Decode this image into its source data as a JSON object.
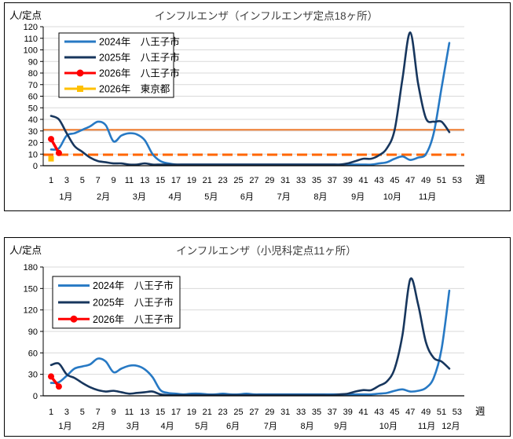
{
  "chart_data": [
    {
      "type": "line",
      "title": "インフルエンザ（インフルエンザ定点18ヶ所）",
      "ylabel": "人/定点",
      "xlabel": "週",
      "ylim": [
        0,
        120
      ],
      "ytick_step": 10,
      "week_ticks": {
        "start": 1,
        "end": 53,
        "step": 2
      },
      "grid": true,
      "legend_position": "top-left",
      "months": [
        {
          "label": "1月",
          "week": 2.9
        },
        {
          "label": "2月",
          "week": 7.7
        },
        {
          "label": "3月",
          "week": 12.3
        },
        {
          "label": "4月",
          "week": 16.9
        },
        {
          "label": "5月",
          "week": 21.5
        },
        {
          "label": "6月",
          "week": 26.1
        },
        {
          "label": "7月",
          "week": 30.8
        },
        {
          "label": "8月",
          "week": 35.5
        },
        {
          "label": "9月",
          "week": 40.3
        },
        {
          "label": "10月",
          "week": 44.7
        },
        {
          "label": "11月",
          "week": 49.2
        }
      ],
      "reference_lines": [
        {
          "name": "alert-level-line",
          "value": 31,
          "color": "#ED7D31",
          "style": "solid"
        },
        {
          "name": "caution-level-line",
          "value": 9.5,
          "color": "#FF6600",
          "style": "dashed"
        }
      ],
      "series": [
        {
          "name": "2024年　八王子市",
          "color": "#2779C4",
          "marker": "none",
          "start_week": 1,
          "values": [
            14,
            15,
            26,
            28,
            31,
            34,
            38,
            35,
            21,
            26,
            28,
            27,
            22,
            10,
            4,
            2,
            1,
            1,
            1,
            1,
            1,
            1,
            1,
            1,
            1,
            1,
            1,
            1,
            1,
            1,
            1,
            1,
            1,
            1,
            1,
            1,
            1,
            1,
            1,
            1,
            1,
            1,
            2,
            3,
            6,
            8,
            5,
            7,
            10,
            28,
            67,
            106
          ]
        },
        {
          "name": "2025年　八王子市",
          "color": "#17365D",
          "marker": "none",
          "start_week": 1,
          "values": [
            43,
            40,
            28,
            17,
            12,
            7,
            4,
            3,
            2,
            2,
            1,
            1,
            2,
            1,
            1,
            1,
            1,
            1,
            1,
            1,
            1,
            1,
            1,
            1,
            1,
            1,
            1,
            1,
            1,
            1,
            1,
            1,
            1,
            1,
            1,
            1,
            1,
            1,
            2,
            4,
            6,
            6,
            9,
            15,
            31,
            75,
            115,
            71,
            41,
            38,
            38,
            29
          ]
        },
        {
          "name": "2026年　八王子市",
          "color": "#FF0000",
          "marker": "circle",
          "start_week": 1,
          "values": [
            23,
            11
          ]
        },
        {
          "name": "2026年　東京都",
          "color": "#FFC000",
          "marker": "square",
          "start_week": 1,
          "values": [
            6
          ]
        }
      ]
    },
    {
      "type": "line",
      "title": "インフルエンザ（小児科定点11ヶ所）",
      "ylabel": "人/定点",
      "xlabel": "週",
      "ylim": [
        0,
        180
      ],
      "ytick_step": 30,
      "week_ticks": {
        "start": 1,
        "end": 53,
        "step": 2
      },
      "grid": true,
      "legend_position": "top-left",
      "months": [
        {
          "label": "1月",
          "week": 2.8
        },
        {
          "label": "2月",
          "week": 7.1
        },
        {
          "label": "3月",
          "week": 11.5
        },
        {
          "label": "4月",
          "week": 15.9
        },
        {
          "label": "5月",
          "week": 20.3
        },
        {
          "label": "6月",
          "week": 24.3
        },
        {
          "label": "7月",
          "week": 29.1
        },
        {
          "label": "8月",
          "week": 33.8
        },
        {
          "label": "9月",
          "week": 38.1
        },
        {
          "label": "10月",
          "week": 44.2
        },
        {
          "label": "11月",
          "week": 49.1
        },
        {
          "label": "12月",
          "week": 52.2
        }
      ],
      "reference_lines": [],
      "series": [
        {
          "name": "2024年　八王子市",
          "color": "#2779C4",
          "marker": "none",
          "start_week": 1,
          "values": [
            18,
            19,
            28,
            38,
            41,
            44,
            52,
            48,
            33,
            38,
            42,
            42,
            37,
            26,
            8,
            4,
            3,
            2,
            3,
            3,
            2,
            2,
            3,
            2,
            2,
            3,
            2,
            2,
            2,
            2,
            2,
            2,
            2,
            2,
            2,
            2,
            2,
            2,
            2,
            2,
            2,
            2,
            3,
            4,
            7,
            9,
            6,
            7,
            11,
            25,
            65,
            147
          ]
        },
        {
          "name": "2025年　八王子市",
          "color": "#17365D",
          "marker": "none",
          "start_week": 1,
          "values": [
            43,
            45,
            30,
            25,
            18,
            12,
            8,
            6,
            7,
            5,
            3,
            4,
            5,
            6,
            2,
            1,
            1,
            1,
            1,
            1,
            1,
            1,
            1,
            1,
            1,
            1,
            1,
            1,
            1,
            1,
            1,
            1,
            1,
            1,
            1,
            1,
            1,
            2,
            3,
            6,
            8,
            8,
            14,
            20,
            38,
            85,
            163,
            128,
            75,
            53,
            48,
            38
          ]
        },
        {
          "name": "2026年　八王子市",
          "color": "#FF0000",
          "marker": "circle",
          "start_week": 1,
          "values": [
            27,
            13
          ]
        }
      ]
    }
  ],
  "style": {
    "grid_color": "#D9D9D9",
    "axis_color": "#000000",
    "title_color": "#404040"
  }
}
